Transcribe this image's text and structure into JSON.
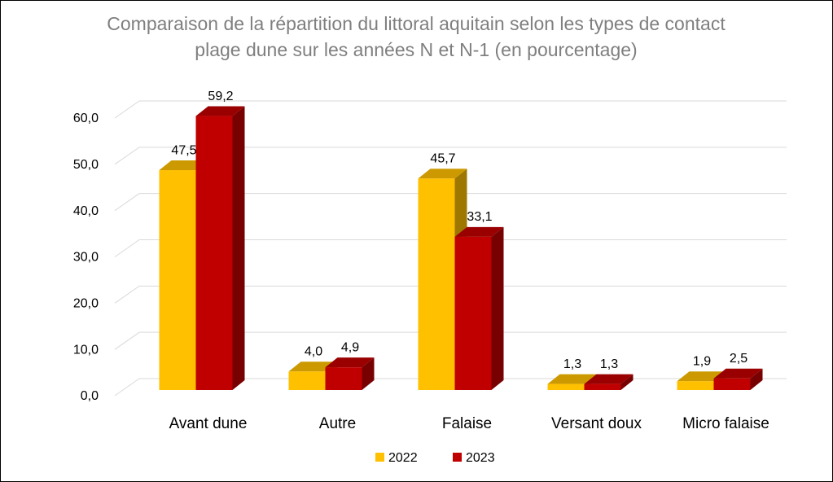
{
  "chart_data": {
    "type": "bar3d",
    "title": "Comparaison de la répartition du littoral aquitain selon les types de contact plage dune sur les années N et N-1 (en pourcentage)",
    "categories": [
      "Avant dune",
      "Autre",
      "Falaise",
      "Versant doux",
      "Micro falaise"
    ],
    "series": [
      {
        "name": "2022",
        "color": "#ffc000",
        "values": [
          47.5,
          4.0,
          45.7,
          1.3,
          1.9
        ],
        "value_labels": [
          "47,5",
          "4,0",
          "45,7",
          "1,3",
          "1,9"
        ]
      },
      {
        "name": "2023",
        "color": "#c00000",
        "values": [
          59.2,
          4.9,
          33.1,
          1.3,
          2.5
        ],
        "value_labels": [
          "59,2",
          "4,9",
          "33,1",
          "1,3",
          "2,5"
        ]
      }
    ],
    "ylim": [
      0,
      60
    ],
    "yticks": [
      {
        "value": 0,
        "label": "0,0"
      },
      {
        "value": 10,
        "label": "10,0"
      },
      {
        "value": 20,
        "label": "20,0"
      },
      {
        "value": 30,
        "label": "30,0"
      },
      {
        "value": 40,
        "label": "40,0"
      },
      {
        "value": 50,
        "label": "50,0"
      },
      {
        "value": 60,
        "label": "60,0"
      }
    ],
    "grid": true,
    "legend": "bottom"
  }
}
